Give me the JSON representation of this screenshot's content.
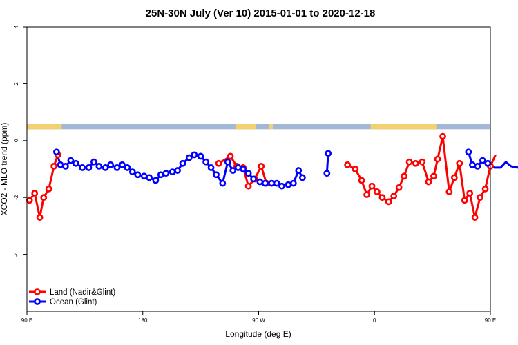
{
  "chart_data": {
    "type": "line",
    "title": "25N-30N July (Ver 10)   2015-01-01 to 2020-12-18",
    "xlabel": "Longitude (deg E)",
    "ylabel": "XCO2 - MLO trend (ppm)",
    "xlim": [
      90,
      450
    ],
    "ylim": [
      -6,
      4
    ],
    "x_ticks": [
      {
        "value": 90,
        "label": "90 E"
      },
      {
        "value": 180,
        "label": "180"
      },
      {
        "value": 270,
        "label": "90 W"
      },
      {
        "value": 360,
        "label": "0"
      },
      {
        "value": 450,
        "label": "90 E"
      },
      {
        "value": 540,
        "label": "180"
      }
    ],
    "y_ticks": [
      {
        "value": 4,
        "label": "4"
      },
      {
        "value": 2,
        "label": "2"
      },
      {
        "value": 0,
        "label": "0"
      },
      {
        "value": -2,
        "label": "-2"
      },
      {
        "value": -4,
        "label": "-4"
      }
    ],
    "land_mask": {
      "band_y": [
        0.4,
        0.6
      ],
      "ocean_color": "#a2b8d6",
      "land_color": "#f3d170",
      "land_ranges": [
        [
          90,
          117
        ],
        [
          252,
          268
        ],
        [
          278,
          281
        ],
        [
          357,
          408
        ]
      ]
    },
    "series": [
      {
        "name": "Land (Nadir&Glint)",
        "color": "#ff0000",
        "segments": [
          [
            [
              92,
              -2.1
            ],
            [
              96,
              -1.85
            ],
            [
              100,
              -2.7
            ],
            [
              103,
              -2.0
            ],
            [
              107,
              -1.7
            ],
            [
              111,
              -0.9
            ],
            [
              114,
              -0.5
            ]
          ],
          [
            [
              239,
              -0.8
            ],
            [
              248,
              -0.55
            ],
            [
              253,
              -0.9
            ],
            [
              258,
              -0.95
            ],
            [
              262,
              -1.6
            ],
            [
              267,
              -1.35
            ],
            [
              272,
              -0.9
            ],
            [
              276,
              -1.5
            ]
          ],
          [
            [
              339,
              -0.85
            ],
            [
              345,
              -1.0
            ],
            [
              350,
              -1.4
            ],
            [
              354,
              -1.9
            ],
            [
              358,
              -1.6
            ],
            [
              362,
              -1.8
            ],
            [
              366,
              -2.0
            ],
            [
              371,
              -2.15
            ],
            [
              375,
              -1.95
            ],
            [
              379,
              -1.65
            ],
            [
              383,
              -1.25
            ],
            [
              387,
              -0.75
            ],
            [
              392,
              -0.8
            ],
            [
              397,
              -0.75
            ],
            [
              402,
              -1.45
            ],
            [
              406,
              -1.25
            ],
            [
              409,
              -0.65
            ],
            [
              413,
              0.15
            ],
            [
              418,
              -1.8
            ],
            [
              422,
              -1.3
            ],
            [
              426,
              -0.8
            ],
            [
              430,
              -2.1
            ],
            [
              434,
              -1.85
            ],
            [
              438,
              -2.7
            ],
            [
              442,
              -2.0
            ],
            [
              446,
              -1.7
            ],
            [
              450,
              -0.9
            ],
            [
              454,
              -0.5
            ]
          ]
        ]
      },
      {
        "name": "Ocean (Glint)",
        "color": "#0000ff",
        "segments": [
          [
            [
              113,
              -0.4
            ],
            [
              116,
              -0.85
            ],
            [
              120,
              -0.9
            ],
            [
              124,
              -0.7
            ],
            [
              128,
              -0.8
            ],
            [
              133,
              -0.95
            ],
            [
              138,
              -0.95
            ],
            [
              142,
              -0.75
            ],
            [
              146,
              -0.9
            ],
            [
              151,
              -0.95
            ],
            [
              155,
              -0.85
            ],
            [
              160,
              -0.95
            ],
            [
              164,
              -0.85
            ],
            [
              168,
              -0.95
            ],
            [
              172,
              -1.1
            ],
            [
              176,
              -1.2
            ],
            [
              181,
              -1.25
            ],
            [
              185,
              -1.3
            ],
            [
              190,
              -1.4
            ],
            [
              194,
              -1.2
            ],
            [
              198,
              -1.15
            ],
            [
              203,
              -1.1
            ],
            [
              207,
              -1.05
            ],
            [
              211,
              -0.8
            ],
            [
              216,
              -0.6
            ],
            [
              220,
              -0.5
            ],
            [
              225,
              -0.55
            ],
            [
              229,
              -0.75
            ],
            [
              233,
              -0.95
            ],
            [
              237,
              -1.2
            ],
            [
              242,
              -1.5
            ],
            [
              246,
              -0.75
            ],
            [
              250,
              -1.05
            ],
            [
              254,
              -0.95
            ],
            [
              258,
              -1.0
            ],
            [
              262,
              -1.15
            ],
            [
              266,
              -1.35
            ],
            [
              271,
              -1.45
            ],
            [
              275,
              -1.5
            ],
            [
              280,
              -1.5
            ],
            [
              284,
              -1.5
            ],
            [
              288,
              -1.6
            ],
            [
              293,
              -1.55
            ],
            [
              297,
              -1.5
            ],
            [
              301,
              -1.05
            ],
            [
              304,
              -1.3
            ]
          ],
          [
            [
              323,
              -1.15
            ],
            [
              324,
              -0.45
            ]
          ],
          [
            [
              433,
              -0.4
            ],
            [
              436,
              -0.85
            ],
            [
              440,
              -0.9
            ],
            [
              444,
              -0.7
            ],
            [
              448,
              -0.8
            ],
            [
              453,
              -0.95
            ],
            [
              458,
              -0.95
            ],
            [
              462,
              -0.75
            ],
            [
              466,
              -0.9
            ],
            [
              471,
              -0.95
            ],
            [
              475,
              -0.85
            ],
            [
              480,
              -0.95
            ],
            [
              484,
              -0.85
            ]
          ]
        ]
      }
    ],
    "legend": {
      "position": "bottom-left"
    }
  }
}
